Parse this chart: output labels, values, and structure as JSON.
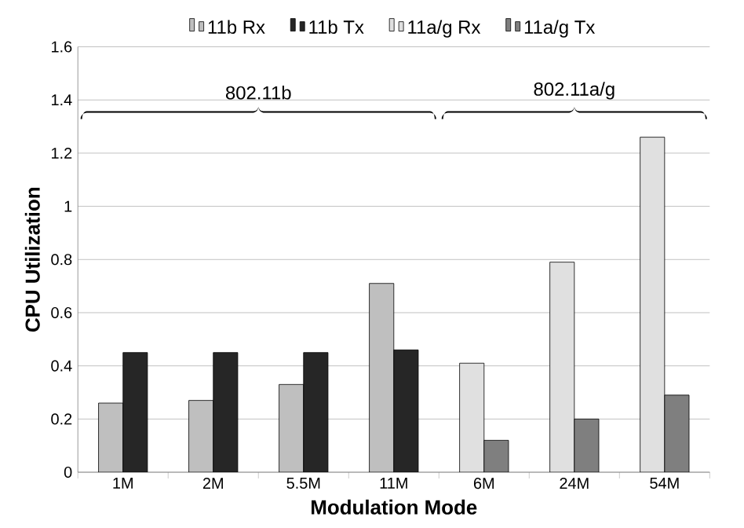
{
  "chart_data": {
    "type": "bar",
    "xlabel": "Modulation Mode",
    "ylabel": "CPU Utilization",
    "categories": [
      "1M",
      "2M",
      "5.5M",
      "11M",
      "6M",
      "24M",
      "54M"
    ],
    "series": [
      {
        "name": "11b Rx",
        "color": "#bfbfbf",
        "values": [
          0.26,
          0.27,
          0.33,
          0.71,
          null,
          null,
          null
        ]
      },
      {
        "name": "11b Tx",
        "color": "#262626",
        "values": [
          0.45,
          0.45,
          0.45,
          0.46,
          null,
          null,
          null
        ]
      },
      {
        "name": "11a/g Rx",
        "color": "#e0e0e0",
        "values": [
          null,
          null,
          null,
          null,
          0.41,
          0.79,
          1.26
        ]
      },
      {
        "name": "11a/g Tx",
        "color": "#7f7f7f",
        "values": [
          null,
          null,
          null,
          null,
          0.12,
          0.2,
          0.29
        ]
      }
    ],
    "annotations": [
      "802.11b",
      "802.11a/g"
    ],
    "ylim": [
      0,
      1.6
    ],
    "yticks": [
      0,
      0.2,
      0.4,
      0.6,
      0.8,
      1,
      1.2,
      1.4,
      1.6
    ],
    "grid": "y",
    "legend": "top"
  }
}
